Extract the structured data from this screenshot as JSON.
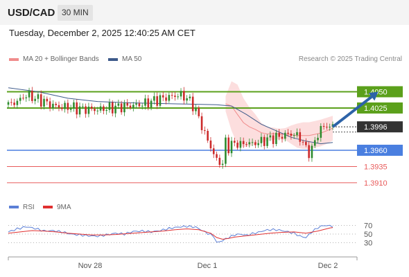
{
  "header": {
    "symbol": "USD/CAD",
    "timeframe": "30 MIN",
    "datetime": "Tuesday, December 2, 2025 12:40:25 AM CET"
  },
  "legend": {
    "ma20": "MA 20 + Bollinger Bands",
    "ma50": "MA 50",
    "copyright": "Research © 2025 Trading Central"
  },
  "colors": {
    "resistance": "#5ba01b",
    "support": "#4a7fe0",
    "lower_level": "#e85a5a",
    "arrow": "#2d63a8",
    "ma20": "#f08c8c",
    "ma50": "#3d5a8a",
    "rsi": "#5b7fd6",
    "rsi_ma": "#e03030",
    "band_fill": "#fcd8d8"
  },
  "chart_data": [
    {
      "type": "line",
      "title": "",
      "x_ticks": [
        "Nov 28",
        "Dec 1",
        "Dec 2"
      ],
      "ylim": [
        1.3895,
        1.4075
      ],
      "current_price": "1.3996",
      "levels": [
        {
          "value": 1.405,
          "label": "1.4050",
          "kind": "resistance",
          "style": "box"
        },
        {
          "value": 1.4025,
          "label": "1.4025",
          "kind": "resistance",
          "style": "box"
        },
        {
          "value": 1.396,
          "label": "1.3960",
          "kind": "support",
          "style": "box"
        },
        {
          "value": 1.3935,
          "label": "1.3935",
          "kind": "lower",
          "style": "text"
        },
        {
          "value": 1.391,
          "label": "1.3910",
          "kind": "lower",
          "style": "text"
        }
      ],
      "series": [
        {
          "name": "MA 20 + Bollinger Bands",
          "kind": "band",
          "x": [
            73,
            75,
            77,
            79,
            81,
            83,
            85,
            87,
            89,
            91,
            93,
            95,
            97,
            99,
            101,
            103,
            105,
            107,
            109
          ],
          "upper": [
            1.4043,
            1.4066,
            1.4061,
            1.404,
            1.4026,
            1.4015,
            1.4002,
            1.3996,
            1.3995,
            1.3993,
            1.3994,
            1.3998,
            1.4001,
            1.4003,
            1.4003,
            1.4005,
            1.4007,
            1.401,
            1.4013
          ],
          "lower": [
            1.402,
            1.399,
            1.3969,
            1.3965,
            1.3966,
            1.3969,
            1.3972,
            1.3974,
            1.3976,
            1.3977,
            1.3976,
            1.397,
            1.3964,
            1.3962,
            1.3962,
            1.3964,
            1.3966,
            1.397,
            1.3975
          ]
        },
        {
          "name": "MA 50",
          "x": [
            0,
            10,
            20,
            30,
            40,
            50,
            60,
            70,
            75,
            80,
            85,
            90,
            95,
            100,
            105,
            109
          ],
          "y": [
            1.4056,
            1.405,
            1.404,
            1.4035,
            1.4033,
            1.4032,
            1.4031,
            1.403,
            1.4028,
            1.4015,
            1.4,
            1.399,
            1.398,
            1.3974,
            1.397,
            1.3972
          ]
        },
        {
          "name": "Price",
          "kind": "candles",
          "x": [
            0,
            2,
            4,
            6,
            8,
            10,
            12,
            14,
            16,
            18,
            20,
            22,
            24,
            26,
            28,
            30,
            32,
            34,
            36,
            38,
            40,
            42,
            44,
            46,
            48,
            50,
            52,
            54,
            56,
            58,
            60,
            62,
            64,
            66,
            68,
            70,
            72,
            73,
            74,
            75,
            76,
            77,
            78,
            79,
            80,
            82,
            84,
            86,
            88,
            90,
            92,
            94,
            96,
            98,
            100,
            101,
            102,
            103,
            104,
            105,
            106,
            107,
            108,
            109
          ],
          "y": [
            1.403,
            1.4033,
            1.4038,
            1.4045,
            1.4042,
            1.4038,
            1.4035,
            1.403,
            1.4028,
            1.4026,
            1.4027,
            1.4025,
            1.4024,
            1.4023,
            1.4023,
            1.4022,
            1.4024,
            1.4025,
            1.4026,
            1.4027,
            1.4028,
            1.4029,
            1.403,
            1.4032,
            1.4035,
            1.4038,
            1.404,
            1.4042,
            1.4044,
            1.4045,
            1.404,
            1.403,
            1.401,
            1.3985,
            1.3965,
            1.3944,
            1.394,
            1.3972,
            1.3965,
            1.397,
            1.3968,
            1.3972,
            1.3968,
            1.397,
            1.3972,
            1.397,
            1.3972,
            1.3975,
            1.3978,
            1.398,
            1.3982,
            1.3985,
            1.3984,
            1.398,
            1.3962,
            1.3958,
            1.396,
            1.3975,
            1.3985,
            1.3992,
            1.3997,
            1.3998,
            1.3996,
            1.3996
          ]
        }
      ],
      "projection": {
        "from_x": 109,
        "from_y": 1.3996,
        "to_x": 121,
        "to_y": 1.405
      }
    },
    {
      "type": "line",
      "title": "",
      "ylim": [
        10,
        90
      ],
      "y_ticks": [
        70,
        50,
        30
      ],
      "series": [
        {
          "name": "RSI",
          "x": [
            0,
            3,
            6,
            9,
            12,
            15,
            18,
            21,
            24,
            27,
            30,
            33,
            36,
            39,
            42,
            45,
            48,
            51,
            54,
            57,
            60,
            63,
            66,
            69,
            70,
            72,
            74,
            76,
            78,
            80,
            82,
            84,
            86,
            88,
            90,
            92,
            94,
            96,
            98,
            100,
            102,
            104,
            106,
            108,
            109
          ],
          "y": [
            55,
            62,
            67,
            63,
            57,
            58,
            55,
            50,
            48,
            46,
            45,
            48,
            52,
            50,
            56,
            57,
            55,
            58,
            63,
            66,
            68,
            66,
            55,
            45,
            30,
            35,
            42,
            48,
            50,
            47,
            51,
            54,
            58,
            60,
            60,
            58,
            55,
            52,
            45,
            42,
            55,
            65,
            70,
            69,
            68
          ]
        },
        {
          "name": "9MA",
          "x": [
            0,
            4,
            8,
            12,
            16,
            20,
            24,
            28,
            32,
            36,
            40,
            44,
            48,
            52,
            56,
            60,
            64,
            68,
            70,
            72,
            74,
            76,
            80,
            84,
            88,
            92,
            96,
            100,
            104,
            108,
            109
          ],
          "y": [
            52,
            55,
            58,
            57,
            55,
            52,
            50,
            48,
            48,
            49,
            51,
            53,
            55,
            57,
            60,
            62,
            60,
            52,
            42,
            38,
            40,
            43,
            46,
            49,
            52,
            54,
            55,
            52,
            57,
            64,
            65
          ]
        }
      ]
    }
  ]
}
